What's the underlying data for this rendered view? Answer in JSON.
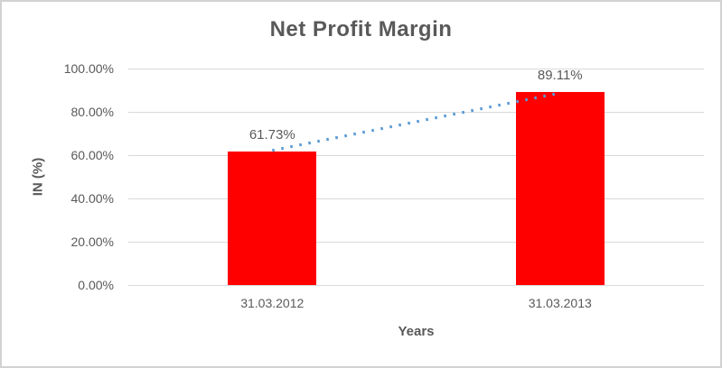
{
  "chart_data": {
    "type": "bar",
    "title": "Net Profit Margin",
    "xlabel": "Years",
    "ylabel": "IN (%)",
    "categories": [
      "31.03.2012",
      "31.03.2013"
    ],
    "values": [
      61.73,
      89.11
    ],
    "value_labels": [
      "61.73%",
      "89.11%"
    ],
    "ylim": [
      0,
      100
    ],
    "yticks": [
      {
        "label": "0.00%",
        "value": 0
      },
      {
        "label": "20.00%",
        "value": 20
      },
      {
        "label": "40.00%",
        "value": 40
      },
      {
        "label": "60.00%",
        "value": 60
      },
      {
        "label": "80.00%",
        "value": 80
      },
      {
        "label": "100.00%",
        "value": 100
      }
    ],
    "grid": true,
    "legend": "none",
    "bar_color": "#ff0000",
    "trendline": {
      "type": "linear",
      "style": "dotted",
      "color": "#5b9bd5"
    },
    "text_color": "#595959",
    "gridline_color": "#d9d9d9"
  }
}
